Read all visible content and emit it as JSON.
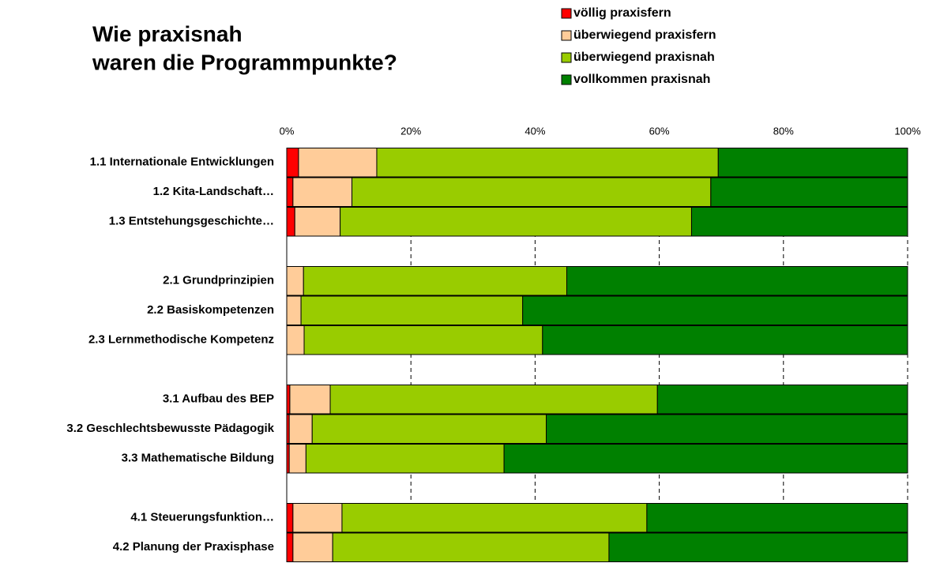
{
  "chart_data": {
    "type": "stacked_barh",
    "title": [
      "Wie praxisnah",
      "waren die Programmpunkte?"
    ],
    "categories": [
      "1.1 Internationale Entwicklungen",
      "1.2 Kita-Landschaft…",
      "1.3 Entstehungsgeschichte…",
      null,
      "2.1 Grundprinzipien",
      "2.2 Basiskompetenzen",
      "2.3 Lernmethodische Kompetenz",
      null,
      "3.1 Aufbau des BEP",
      "3.2 Geschlechtsbewusste Pädagogik",
      "3.3 Mathematische Bildung",
      null,
      "4.1 Steuerungsfunktion…",
      "4.2 Planung der Praxisphase"
    ],
    "series": [
      {
        "name": "völlig praxisfern",
        "color": "#ff0000",
        "values": [
          1.9,
          1.0,
          1.3,
          null,
          0,
          0,
          0,
          null,
          0.5,
          0.4,
          0.4,
          null,
          1.0,
          1.0
        ]
      },
      {
        "name": "überwiegend praxisfern",
        "color": "#ffcc99",
        "values": [
          12.6,
          9.5,
          7.3,
          null,
          2.7,
          2.3,
          2.8,
          null,
          6.5,
          3.7,
          2.7,
          null,
          7.9,
          6.4
        ]
      },
      {
        "name": "überwiegend praxisnah",
        "color": "#99cc00",
        "values": [
          55.0,
          57.8,
          56.6,
          null,
          42.4,
          35.7,
          38.4,
          null,
          52.7,
          37.7,
          31.9,
          null,
          49.1,
          44.5
        ]
      },
      {
        "name": "vollkommen praxisnah",
        "color": "#008000",
        "values": [
          30.5,
          31.7,
          34.8,
          null,
          54.9,
          62.0,
          58.8,
          null,
          40.3,
          58.2,
          65.0,
          null,
          42.0,
          48.1
        ]
      }
    ],
    "xlim": [
      0,
      100
    ],
    "xticks": [
      {
        "value": 0,
        "label": "0%"
      },
      {
        "value": 20,
        "label": "20%"
      },
      {
        "value": 40,
        "label": "40%"
      },
      {
        "value": 60,
        "label": "60%"
      },
      {
        "value": 80,
        "label": "80%"
      },
      {
        "value": 100,
        "label": "100%"
      }
    ],
    "grid": true,
    "legend": "top-right"
  }
}
